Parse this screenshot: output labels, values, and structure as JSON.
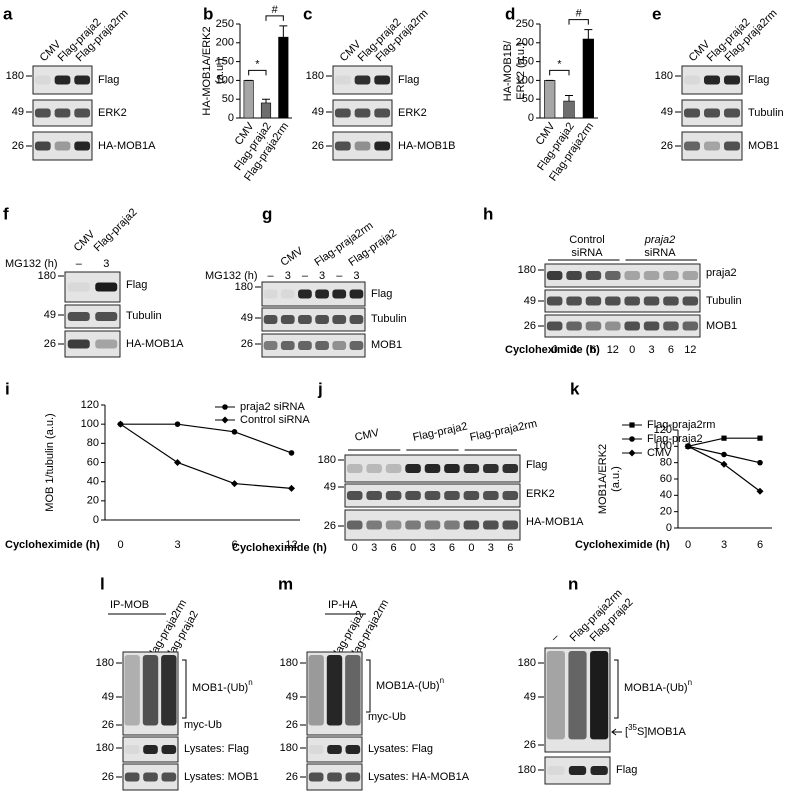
{
  "chart_data": [
    {
      "type": "bar",
      "letter": "b",
      "ylabel": [
        "HA-MOB1A/ERK2",
        "(a.u.)"
      ],
      "categories": [
        "CMV",
        "Flag-praja2",
        "Flag-praja2rm"
      ],
      "values": [
        100,
        40,
        215
      ],
      "errors": [
        0,
        10,
        30
      ],
      "colors": [
        "#a6a6a6",
        "#6e6e6e",
        "#000000"
      ],
      "ylim": [
        0,
        250
      ],
      "yticks": [
        0,
        50,
        100,
        150,
        200,
        250
      ],
      "annotations": [
        "*",
        "#"
      ]
    },
    {
      "type": "bar",
      "letter": "d",
      "ylabel": [
        "HA-MOB1B/",
        "ERK2 (a.u.)"
      ],
      "categories": [
        "CMV",
        "Flag-praja2",
        "Flag-praja2rm"
      ],
      "values": [
        100,
        45,
        210
      ],
      "errors": [
        0,
        15,
        25
      ],
      "colors": [
        "#a6a6a6",
        "#6e6e6e",
        "#000000"
      ],
      "ylim": [
        0,
        250
      ],
      "yticks": [
        0,
        50,
        100,
        150,
        200,
        250
      ],
      "annotations": [
        "*",
        "#"
      ]
    },
    {
      "type": "line",
      "letter": "i",
      "ylabel": [
        "MOB 1/tubulin (a.u.)"
      ],
      "xlabel": "Cycloheximide (h)",
      "categories": [
        "0",
        "3",
        "6",
        "12"
      ],
      "series": [
        {
          "name": "praja2 siRNA",
          "color": "#000000",
          "marker": "circle",
          "values": [
            100,
            100,
            92,
            70
          ]
        },
        {
          "name": "Control siRNA",
          "color": "#000000",
          "marker": "diamond",
          "values": [
            100,
            60,
            38,
            33
          ]
        }
      ],
      "ylim": [
        0,
        120
      ],
      "yticks": [
        0,
        20,
        40,
        60,
        80,
        100,
        120
      ]
    },
    {
      "type": "line",
      "letter": "k",
      "ylabel": [
        "MOB1A/ERK2",
        "(a.u.)"
      ],
      "xlabel": "Cycloheximide (h)",
      "categories": [
        "0",
        "3",
        "6"
      ],
      "series": [
        {
          "name": "Flag-praja2rm",
          "color": "#000000",
          "marker": "square",
          "values": [
            100,
            110,
            110
          ]
        },
        {
          "name": "Flag-praja2",
          "color": "#000000",
          "marker": "circle",
          "values": [
            100,
            90,
            80
          ]
        },
        {
          "name": "CMV",
          "color": "#000000",
          "marker": "diamond",
          "values": [
            100,
            78,
            45
          ]
        }
      ],
      "ylim": [
        0,
        120
      ],
      "yticks": [
        0,
        20,
        40,
        60,
        80,
        100,
        120
      ]
    }
  ],
  "blots": [
    {
      "letter": "a",
      "lanes": [
        "CMV",
        "Flag-praja2",
        "Flag-praja2rm"
      ],
      "markers": [
        "180",
        "49",
        "26"
      ],
      "rows": [
        "Flag",
        "ERK2",
        "HA-MOB1A"
      ]
    },
    {
      "letter": "c",
      "lanes": [
        "CMV",
        "Flag-praja2",
        "Flag-praja2rm"
      ],
      "markers": [
        "180",
        "49",
        "26"
      ],
      "rows": [
        "Flag",
        "ERK2",
        "HA-MOB1B"
      ]
    },
    {
      "letter": "e",
      "lanes": [
        "CMV",
        "Flag-praja2",
        "Flag-praja2rm"
      ],
      "markers": [
        "180",
        "49",
        "26"
      ],
      "rows": [
        "Flag",
        "Tubulin",
        "MOB1"
      ]
    },
    {
      "letter": "f",
      "lanes": [
        "CMV",
        "Flag-praja2"
      ],
      "treatment": {
        "label": "MG132 (h)",
        "values": [
          "–",
          "3"
        ]
      },
      "markers": [
        "180",
        "49",
        "26"
      ],
      "rows": [
        "Flag",
        "Tubulin",
        "HA-MOB1A"
      ]
    },
    {
      "letter": "g",
      "lanes": [
        "CMV",
        "Flag-praja2rm",
        "Flag-praja2"
      ],
      "treatment": {
        "label": "MG132 (h)",
        "values": [
          "–",
          "3",
          "–",
          "3",
          "–",
          "3"
        ]
      },
      "markers": [
        "180",
        "49",
        "26"
      ],
      "rows": [
        "Flag",
        "Tubulin",
        "MOB1"
      ]
    },
    {
      "letter": "h",
      "groups": [
        [
          "Control",
          "siRNA"
        ],
        [
          "praja2",
          "siRNA"
        ]
      ],
      "markers": [
        "180",
        "49",
        "26"
      ],
      "rows": [
        "praja2",
        "Tubulin",
        "MOB1"
      ],
      "time": {
        "label": "Cycloheximide (h)",
        "values": [
          "0",
          "3",
          "6",
          "12",
          "0",
          "3",
          "6",
          "12"
        ]
      }
    },
    {
      "letter": "j",
      "lanes": [
        "CMV",
        "Flag-praja2",
        "Flag-praja2rm"
      ],
      "markers": [
        "180",
        "49",
        "26"
      ],
      "rows": [
        "Flag",
        "ERK2",
        "HA-MOB1A"
      ],
      "time": {
        "label": "Cycloheximide (h)",
        "values": [
          "0",
          "3",
          "6",
          "0",
          "3",
          "6",
          "0",
          "3",
          "6"
        ]
      }
    },
    {
      "letter": "l",
      "ip": "IP-MOB",
      "lanes": [
        "–",
        "Flag-praja2rm",
        "Flag-praja2"
      ],
      "markers": [
        "180",
        "49",
        "26",
        "180",
        "26"
      ],
      "ub": {
        "text": "MOB1-(Ub)",
        "sup": "n"
      },
      "rows": [
        "myc-Ub",
        "Lysates: Flag",
        "Lysates: MOB1"
      ]
    },
    {
      "letter": "m",
      "ip": "IP-HA",
      "lanes": [
        "–",
        "Flag-praja2",
        "Flag-praja2rm"
      ],
      "markers": [
        "180",
        "49",
        "26",
        "180",
        "26"
      ],
      "ub": {
        "text": "MOB1A-(Ub)",
        "sup": "n"
      },
      "rows": [
        "myc-Ub",
        "Lysates: Flag",
        "Lysates: HA-MOB1A"
      ]
    },
    {
      "letter": "n",
      "lanes": [
        "–",
        "Flag-praja2rm",
        "Flag-praja2"
      ],
      "markers": [
        "180",
        "49",
        "26",
        "180"
      ],
      "ub": {
        "text": "MOB1A-(Ub)",
        "sup": "n"
      },
      "substrate": [
        "[",
        "35",
        "S]MOB1A"
      ],
      "rows": [
        "Flag"
      ]
    }
  ]
}
